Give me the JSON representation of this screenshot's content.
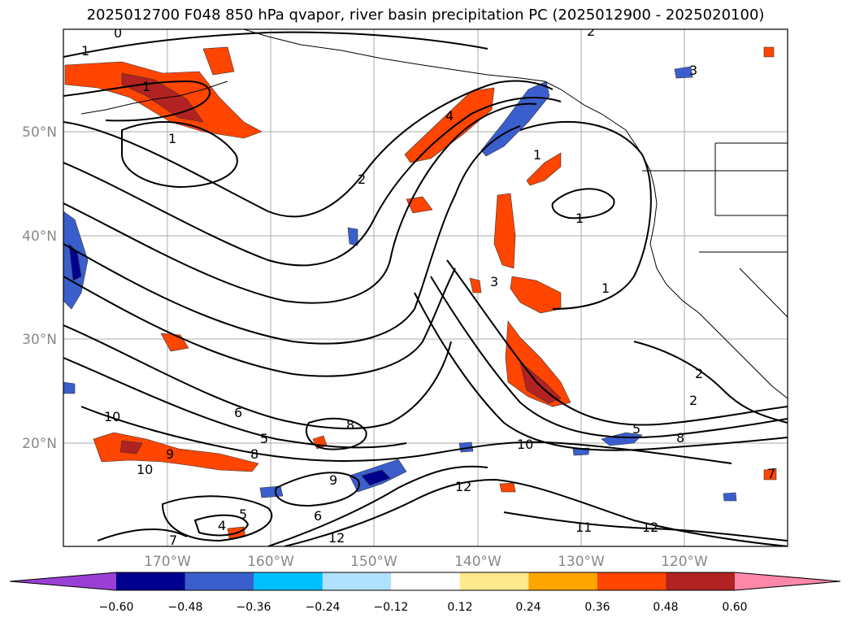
{
  "title": "2025012700 F048 850 hPa qvapor, river basin precipitation PC (2025012900 - 2025020100)",
  "map": {
    "lat_labels": [
      "50°N",
      "40°N",
      "30°N",
      "20°N"
    ],
    "lon_labels": [
      "170°W",
      "160°W",
      "150°W",
      "140°W",
      "130°W",
      "120°W"
    ],
    "contour_labels": [
      "0",
      "1",
      "1",
      "1",
      "1",
      "1",
      "1",
      "2",
      "2",
      "2",
      "2",
      "3",
      "3",
      "4",
      "4",
      "5",
      "5",
      "5",
      "6",
      "6",
      "7",
      "7",
      "8",
      "8",
      "8",
      "9",
      "9",
      "10",
      "10",
      "10",
      "11",
      "12",
      "12",
      "12"
    ]
  },
  "colorbar": {
    "colors": [
      "#9a3fd6",
      "#00008f",
      "#3a5fcd",
      "#00bfff",
      "#b0e2ff",
      "#ffffff",
      "#fee98c",
      "#ffa500",
      "#ff4500",
      "#b22222",
      "#ff88aa"
    ],
    "ticks": [
      "−0.60",
      "−0.48",
      "−0.36",
      "−0.24",
      "−0.12",
      "0.12",
      "0.24",
      "0.36",
      "0.48",
      "0.60"
    ]
  }
}
